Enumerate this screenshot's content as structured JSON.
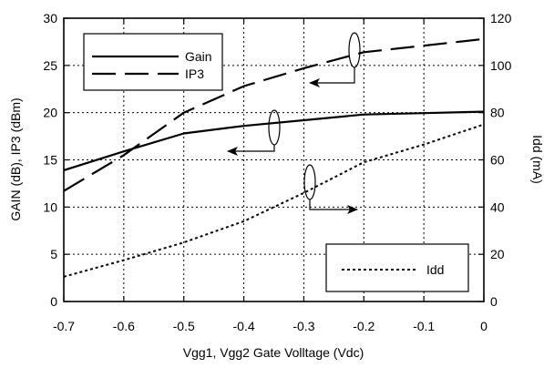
{
  "chart_data": {
    "type": "line",
    "xlabel": "Vgg1, Vgg2  Gate Volltage (Vdc)",
    "ylabel_left": "GAIN (dB), IP3 (dBm)",
    "ylabel_right": "Idd (mA)",
    "xlim": [
      -0.7,
      0
    ],
    "ylim_left": [
      0,
      30
    ],
    "ylim_right": [
      0,
      120
    ],
    "x_ticks": [
      -0.7,
      -0.6,
      -0.5,
      -0.4,
      -0.3,
      -0.2,
      -0.1,
      0
    ],
    "x_tick_labels": [
      "-0.7",
      "-0.6",
      "-0.5",
      "-0.4",
      "-0.3",
      "-0.2",
      "-0.1",
      "0"
    ],
    "y_left_ticks": [
      0,
      5,
      10,
      15,
      20,
      25,
      30
    ],
    "y_left_tick_labels": [
      "0",
      "5",
      "10",
      "15",
      "20",
      "25",
      "30"
    ],
    "y_right_ticks": [
      0,
      20,
      40,
      60,
      80,
      100,
      120
    ],
    "y_right_tick_labels": [
      "0",
      "20",
      "40",
      "60",
      "80",
      "100",
      "120"
    ],
    "grid": true,
    "series": [
      {
        "name": "Gain",
        "axis": "left",
        "style": "solid",
        "x": [
          -0.7,
          -0.6,
          -0.5,
          -0.4,
          -0.3,
          -0.2,
          -0.1,
          0
        ],
        "y": [
          13.9,
          15.9,
          17.8,
          18.6,
          19.2,
          19.8,
          19.95,
          20.1
        ]
      },
      {
        "name": "IP3",
        "axis": "left",
        "style": "dashed",
        "x": [
          -0.7,
          -0.6,
          -0.5,
          -0.4,
          -0.3,
          -0.2,
          -0.1,
          0
        ],
        "y": [
          11.7,
          15.5,
          20.0,
          22.8,
          24.7,
          26.4,
          27.1,
          27.8
        ]
      },
      {
        "name": "Idd",
        "axis": "right",
        "style": "dotted",
        "x": [
          -0.7,
          -0.6,
          -0.5,
          -0.4,
          -0.3,
          -0.2,
          -0.1,
          0
        ],
        "y": [
          10.5,
          17.5,
          25.0,
          34.0,
          46.0,
          59.0,
          66.5,
          75.0
        ]
      }
    ],
    "legend_main": {
      "placement": "top-left",
      "entries": [
        "Gain",
        "IP3"
      ]
    },
    "legend_idd": {
      "placement": "bottom-right",
      "entries": [
        "Idd"
      ]
    }
  }
}
